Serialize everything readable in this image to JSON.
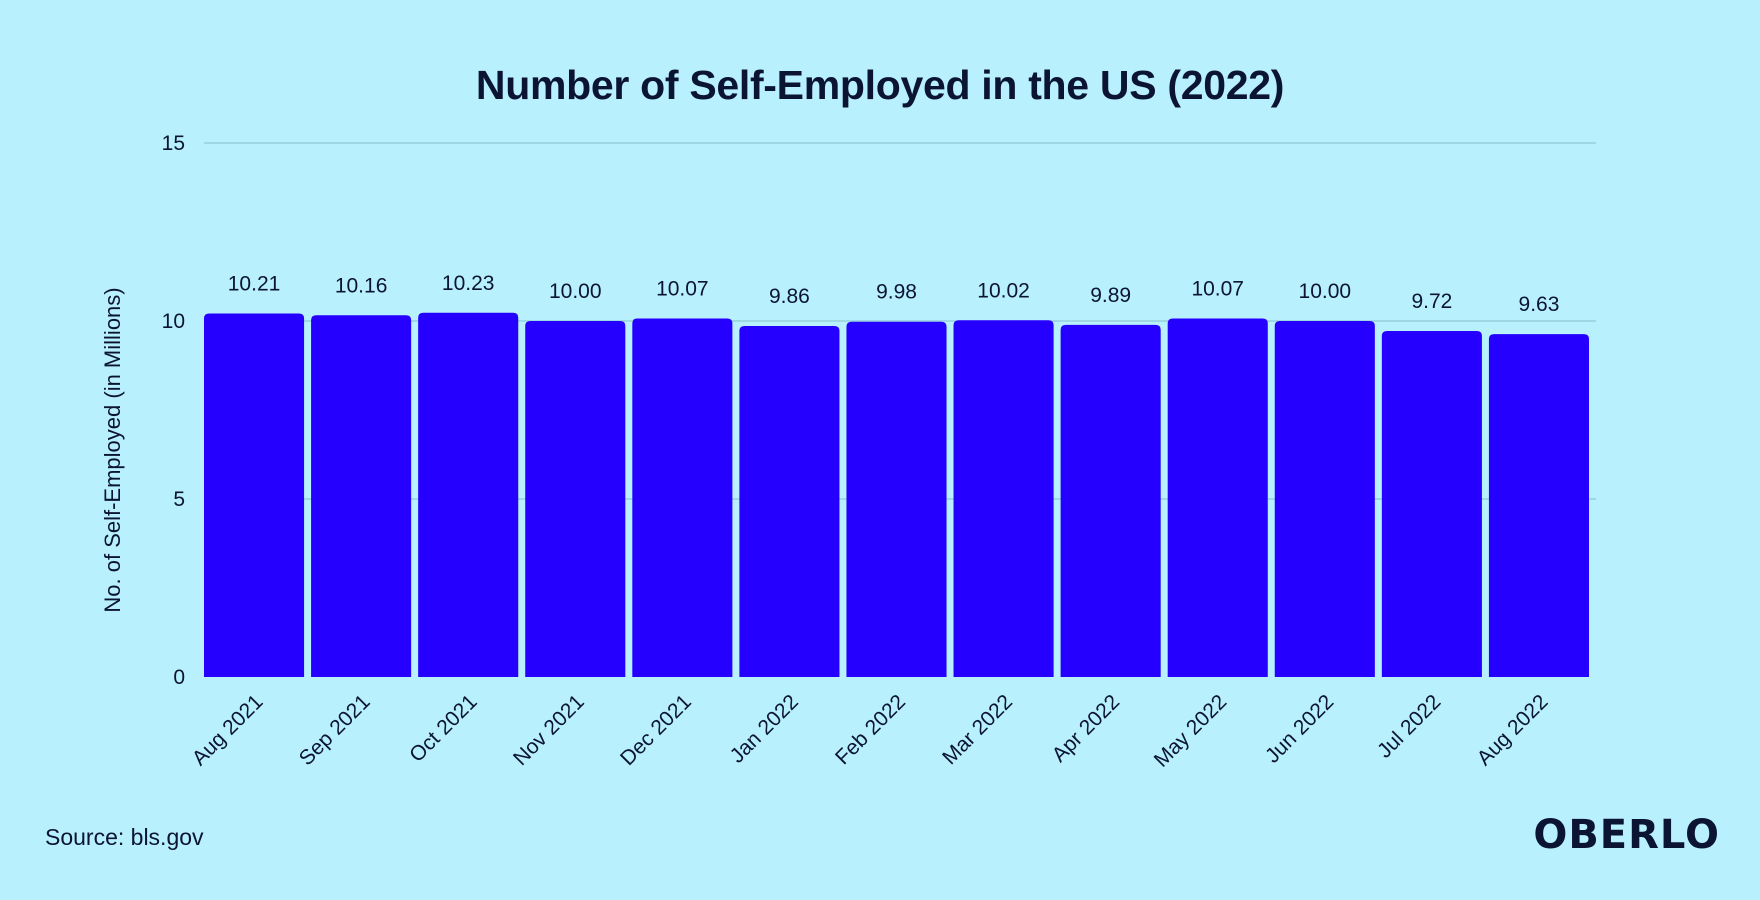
{
  "chart_data": {
    "type": "bar",
    "title": "Number of Self-Employed in the US (2022)",
    "xlabel": "",
    "ylabel": "No. of Self-Employed (in Millions)",
    "ylim": [
      0,
      15
    ],
    "yticks": [
      0,
      5,
      10,
      15
    ],
    "grid": true,
    "categories": [
      "Aug 2021",
      "Sep 2021",
      "Oct 2021",
      "Nov 2021",
      "Dec 2021",
      "Jan 2022",
      "Feb 2022",
      "Mar 2022",
      "Apr 2022",
      "May 2022",
      "Jun 2022",
      "Jul 2022",
      "Aug 2022"
    ],
    "values": [
      10.21,
      10.16,
      10.23,
      10.0,
      10.07,
      9.86,
      9.98,
      10.02,
      9.89,
      10.07,
      10.0,
      9.72,
      9.63
    ],
    "value_labels": [
      "10.21",
      "10.16",
      "10.23",
      "10.00",
      "10.07",
      "9.86",
      "9.98",
      "10.02",
      "9.89",
      "10.07",
      "10.00",
      "9.72",
      "9.63"
    ],
    "bar_color": "#2600ff",
    "gridline_color": "#8fc9d6"
  },
  "source": "Source: bls.gov",
  "brand": "OBERLO",
  "colors": {
    "background": "#b8f0fd",
    "text": "#0b1533"
  }
}
